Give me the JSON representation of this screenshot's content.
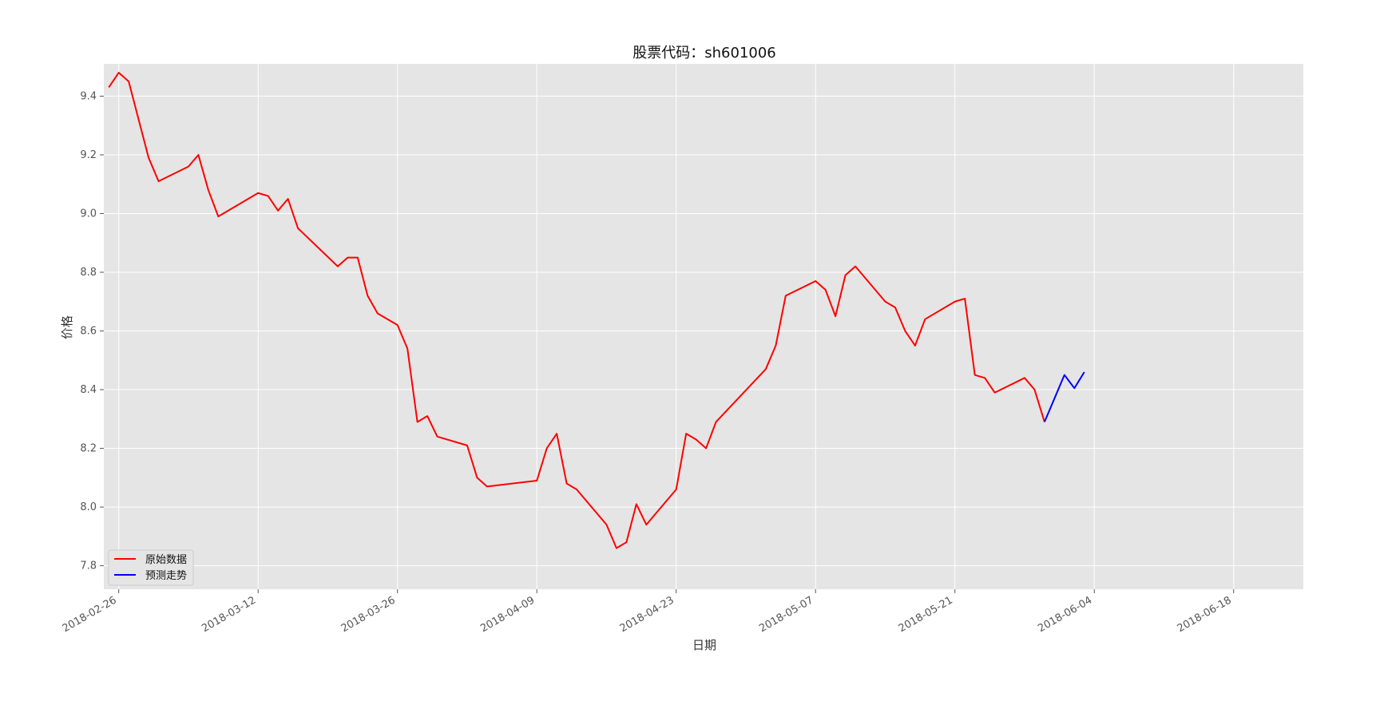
{
  "chart_data": {
    "type": "line",
    "title": "股票代码：sh601006",
    "xlabel": "日期",
    "ylabel": "价格",
    "x_ticks": [
      "2018-02-26",
      "2018-03-12",
      "2018-03-26",
      "2018-04-09",
      "2018-04-23",
      "2018-05-07",
      "2018-05-21",
      "2018-06-04",
      "2018-06-18"
    ],
    "y_ticks": [
      "7.8",
      "8.0",
      "8.2",
      "8.4",
      "8.6",
      "8.8",
      "9.0",
      "9.2",
      "9.4"
    ],
    "xlim": [
      "2018-02-24 12:00",
      "2018-06-25"
    ],
    "ylim": [
      7.72,
      9.51
    ],
    "grid": true,
    "legend_position": "lower-left",
    "colors": {
      "plot_bg": "#e5e5e5",
      "grid": "#ffffff",
      "original": "#ff0000",
      "forecast": "#0000ff"
    },
    "series": [
      {
        "name": "原始数据",
        "color": "#ff0000",
        "points": [
          [
            "2018-02-25",
            9.43
          ],
          [
            "2018-02-26",
            9.48
          ],
          [
            "2018-02-27",
            9.45
          ],
          [
            "2018-03-01",
            9.19
          ],
          [
            "2018-03-02",
            9.11
          ],
          [
            "2018-03-05",
            9.16
          ],
          [
            "2018-03-06",
            9.2
          ],
          [
            "2018-03-07",
            9.08
          ],
          [
            "2018-03-08",
            8.99
          ],
          [
            "2018-03-12",
            9.07
          ],
          [
            "2018-03-13",
            9.06
          ],
          [
            "2018-03-14",
            9.01
          ],
          [
            "2018-03-15",
            9.05
          ],
          [
            "2018-03-16",
            8.95
          ],
          [
            "2018-03-20",
            8.82
          ],
          [
            "2018-03-21",
            8.85
          ],
          [
            "2018-03-22",
            8.85
          ],
          [
            "2018-03-23",
            8.72
          ],
          [
            "2018-03-24",
            8.66
          ],
          [
            "2018-03-26",
            8.62
          ],
          [
            "2018-03-27",
            8.54
          ],
          [
            "2018-03-28",
            8.29
          ],
          [
            "2018-03-29",
            8.31
          ],
          [
            "2018-03-30",
            8.24
          ],
          [
            "2018-04-02",
            8.21
          ],
          [
            "2018-04-03",
            8.1
          ],
          [
            "2018-04-04",
            8.07
          ],
          [
            "2018-04-09",
            8.09
          ],
          [
            "2018-04-10",
            8.2
          ],
          [
            "2018-04-11",
            8.25
          ],
          [
            "2018-04-12",
            8.08
          ],
          [
            "2018-04-13",
            8.06
          ],
          [
            "2018-04-16",
            7.94
          ],
          [
            "2018-04-17",
            7.86
          ],
          [
            "2018-04-18",
            7.88
          ],
          [
            "2018-04-19",
            8.01
          ],
          [
            "2018-04-20",
            7.94
          ],
          [
            "2018-04-23",
            8.06
          ],
          [
            "2018-04-24",
            8.25
          ],
          [
            "2018-04-25",
            8.23
          ],
          [
            "2018-04-26",
            8.2
          ],
          [
            "2018-04-27",
            8.29
          ],
          [
            "2018-05-02",
            8.47
          ],
          [
            "2018-05-03",
            8.55
          ],
          [
            "2018-05-04",
            8.72
          ],
          [
            "2018-05-07",
            8.77
          ],
          [
            "2018-05-08",
            8.74
          ],
          [
            "2018-05-09",
            8.65
          ],
          [
            "2018-05-10",
            8.79
          ],
          [
            "2018-05-11",
            8.82
          ],
          [
            "2018-05-14",
            8.7
          ],
          [
            "2018-05-15",
            8.68
          ],
          [
            "2018-05-16",
            8.6
          ],
          [
            "2018-05-17",
            8.55
          ],
          [
            "2018-05-18",
            8.64
          ],
          [
            "2018-05-21",
            8.7
          ],
          [
            "2018-05-22",
            8.71
          ],
          [
            "2018-05-23",
            8.45
          ],
          [
            "2018-05-24",
            8.44
          ],
          [
            "2018-05-25",
            8.39
          ],
          [
            "2018-05-28",
            8.44
          ],
          [
            "2018-05-29",
            8.4
          ],
          [
            "2018-05-30",
            8.29
          ]
        ]
      },
      {
        "name": "预测走势",
        "color": "#0000ff",
        "points": [
          [
            "2018-05-30",
            8.29
          ],
          [
            "2018-05-31",
            8.37
          ],
          [
            "2018-06-01",
            8.45
          ],
          [
            "2018-06-02",
            8.405
          ],
          [
            "2018-06-03",
            8.46
          ]
        ]
      }
    ]
  }
}
